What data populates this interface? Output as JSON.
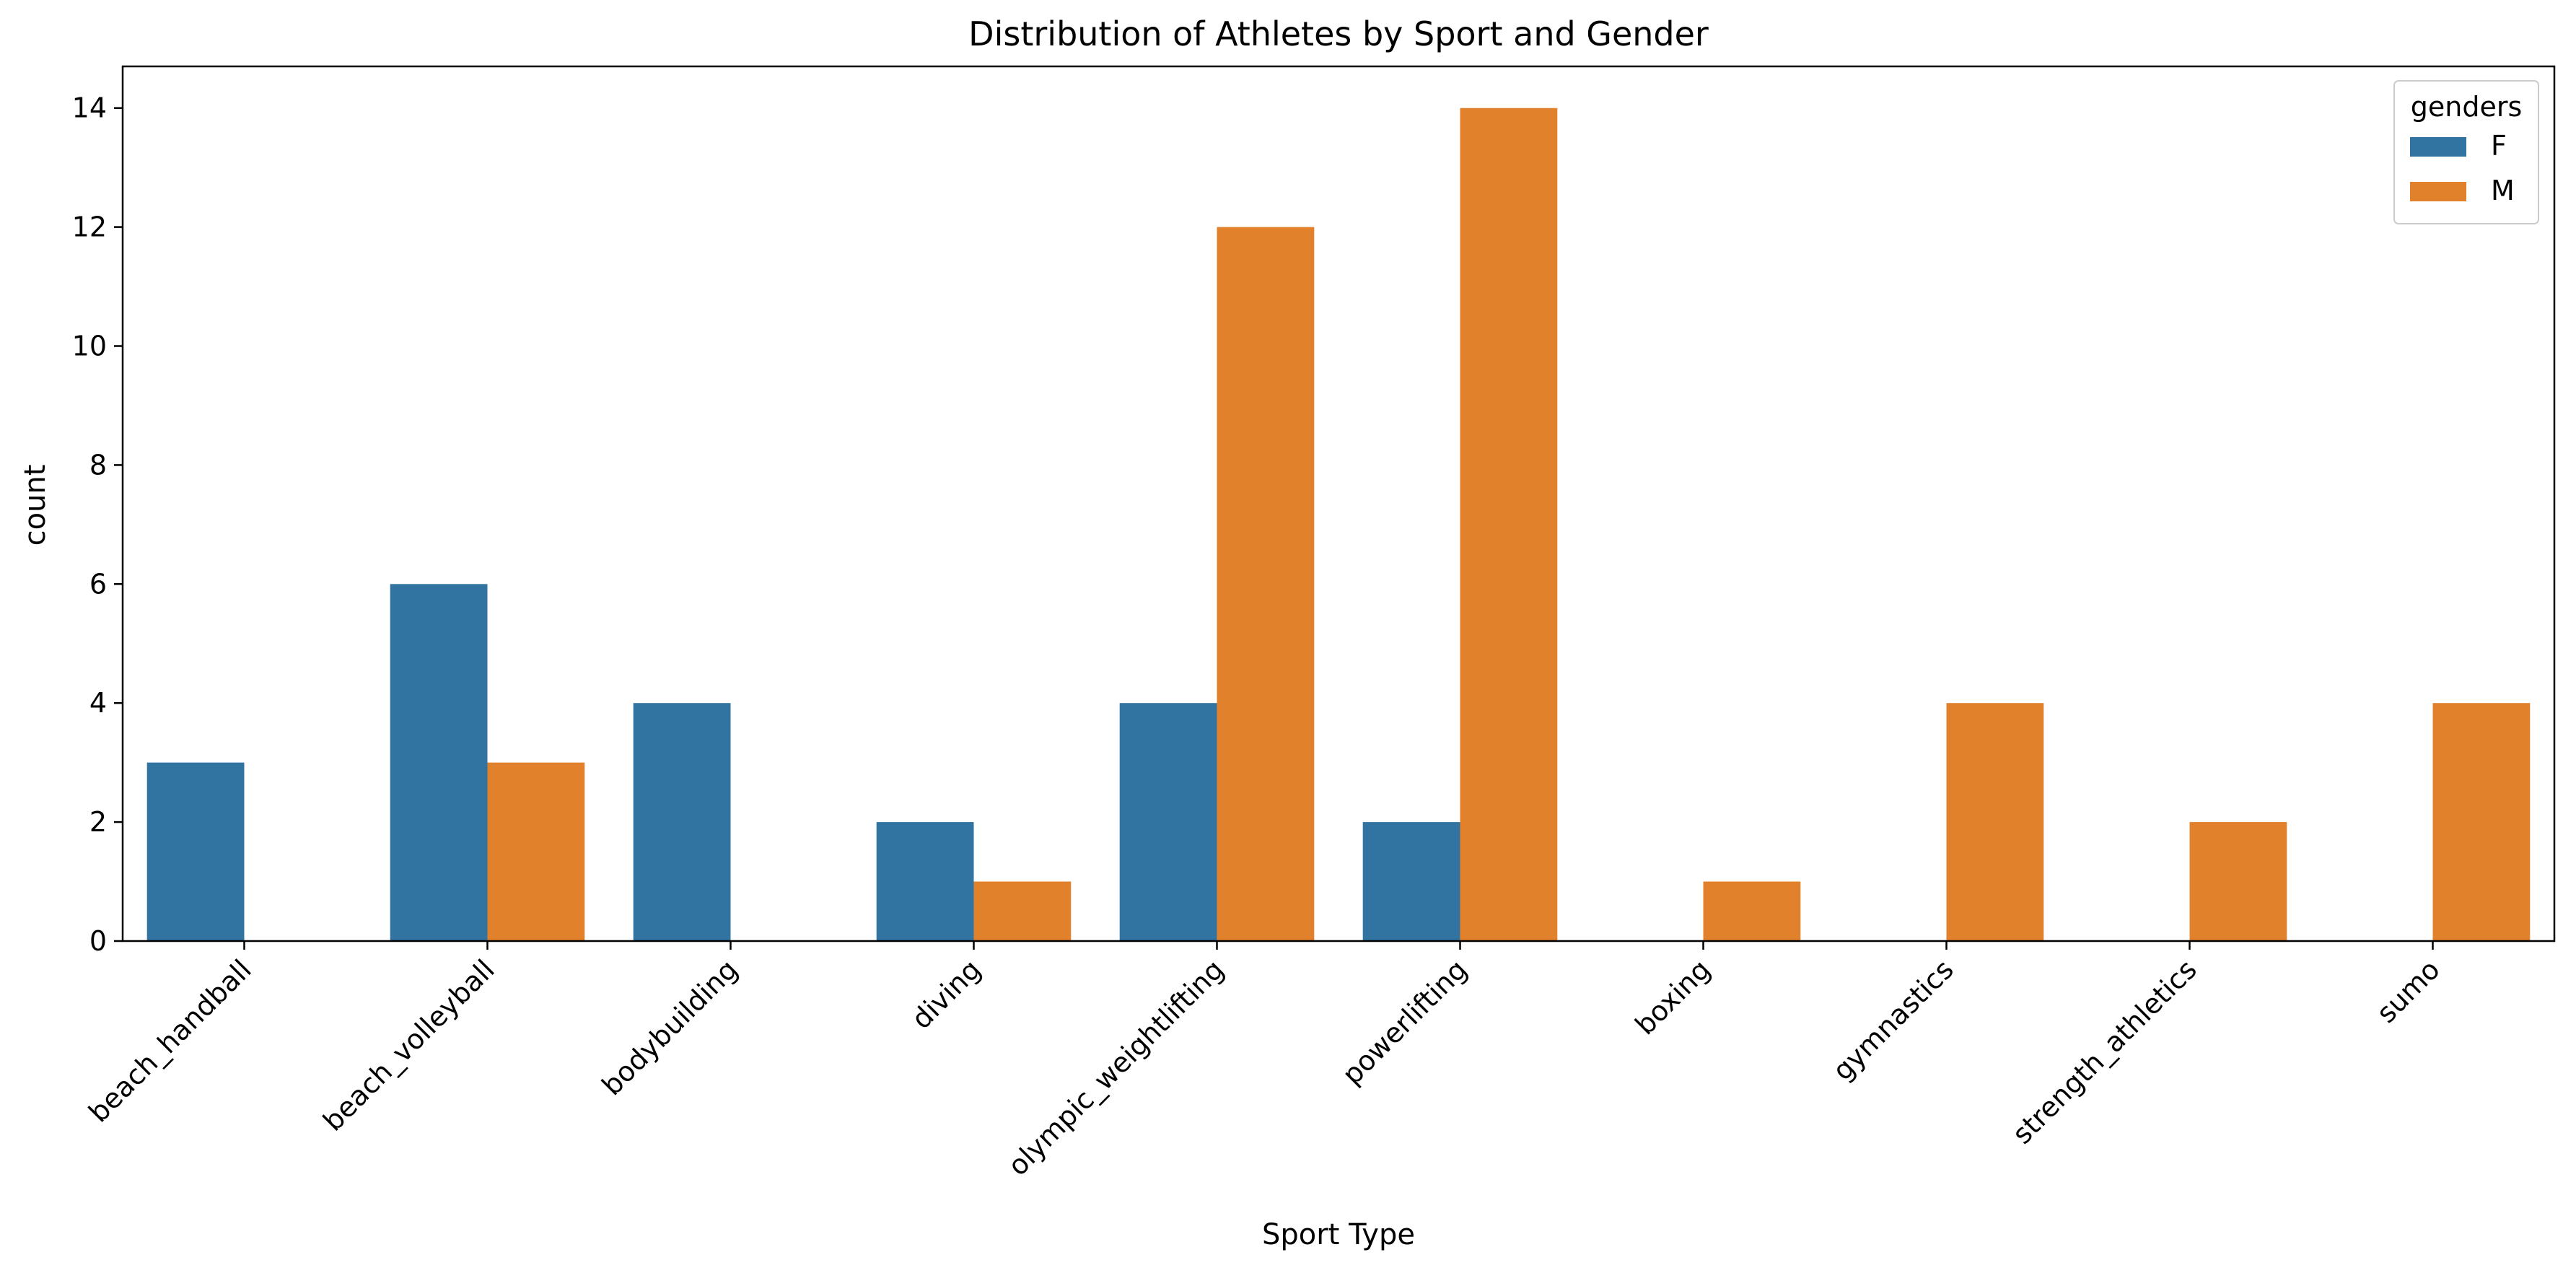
{
  "chart_data": {
    "type": "bar",
    "title": "Distribution of Athletes by Sport and Gender",
    "xlabel": "Sport Type",
    "ylabel": "count",
    "ylim": [
      0,
      14.7
    ],
    "yticks": [
      0,
      2,
      4,
      6,
      8,
      10,
      12,
      14
    ],
    "categories": [
      "beach_handball",
      "beach_volleyball",
      "bodybuilding",
      "diving",
      "olympic_weightlifting",
      "powerlifting",
      "boxing",
      "gymnastics",
      "strength_athletics",
      "sumo"
    ],
    "series": [
      {
        "name": "F",
        "color": "#3274a1",
        "values": [
          3,
          6,
          4,
          2,
          4,
          2,
          0,
          0,
          0,
          0
        ]
      },
      {
        "name": "M",
        "color": "#e1812c",
        "values": [
          0,
          3,
          0,
          1,
          12,
          14,
          1,
          4,
          2,
          4
        ]
      }
    ],
    "legend": {
      "title": "genders",
      "position": "top-right"
    },
    "grid": false
  }
}
